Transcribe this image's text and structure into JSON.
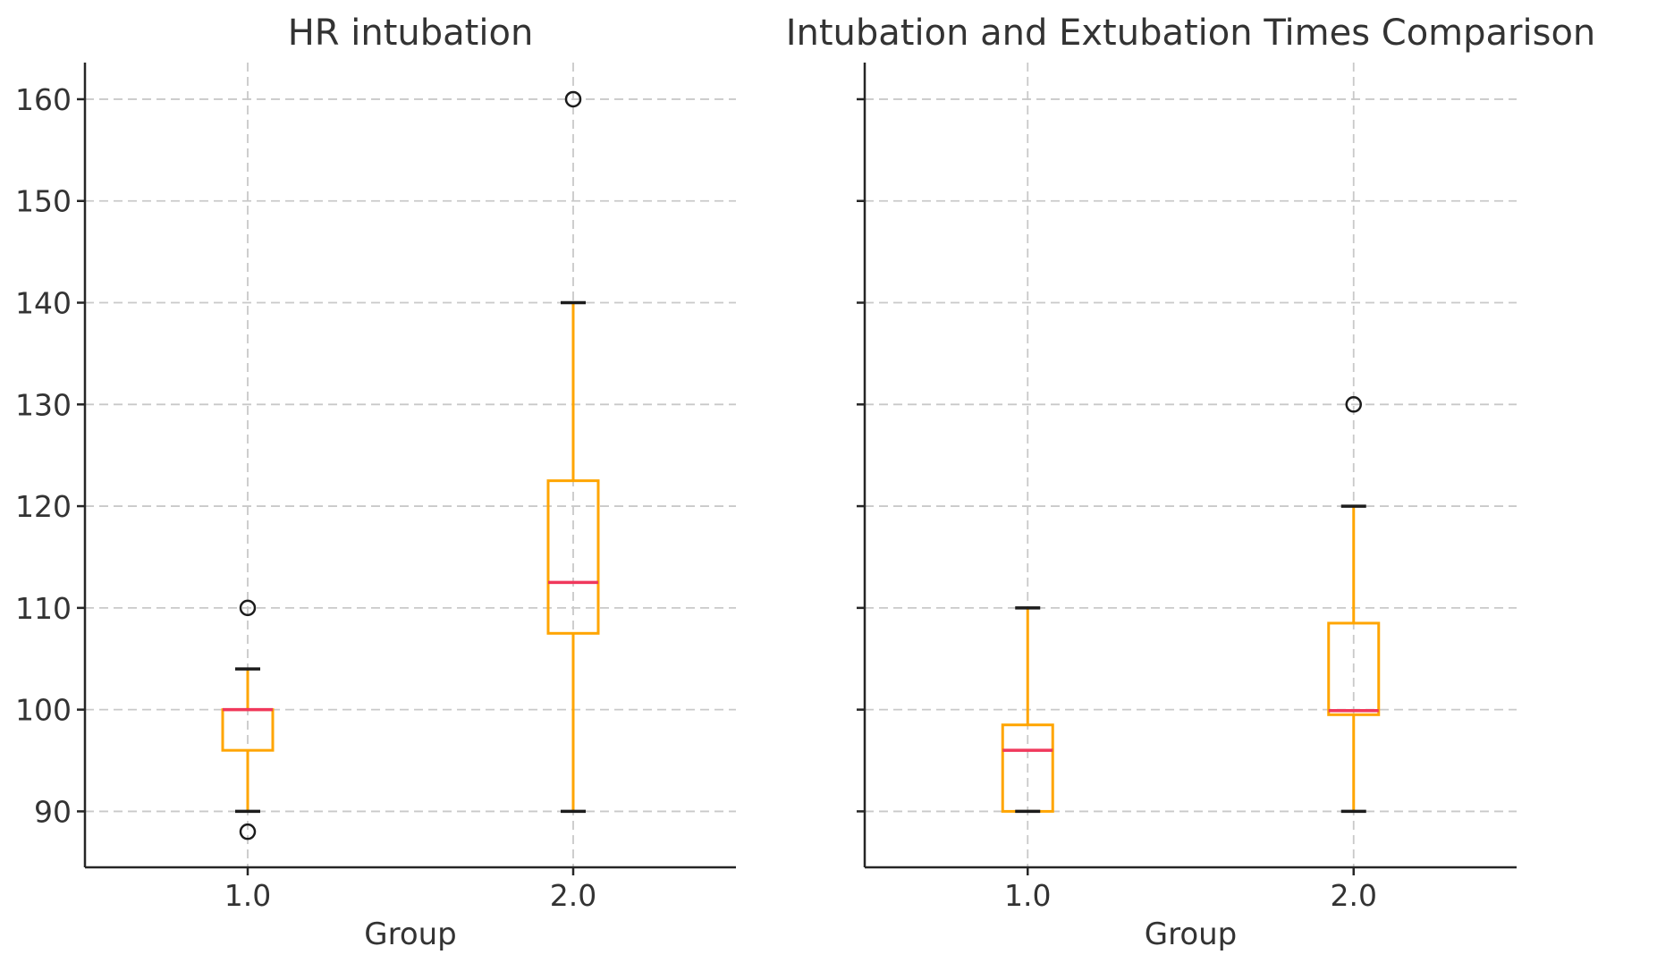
{
  "figure": {
    "background": "#ffffff",
    "shared_y_axis": true
  },
  "style": {
    "box_color": "#FFA500",
    "median_color": "#F0385C",
    "whisker_cap_color": "#1c1c1c",
    "grid_color": "#c9c9c9",
    "spine_color": "#262626",
    "text_color": "#333333"
  },
  "chart_data": [
    {
      "type": "box",
      "title": "HR intubation",
      "xlabel": "Group",
      "ylabel": "",
      "categories": [
        "1.0",
        "2.0"
      ],
      "ylim": [
        84.5,
        163.6
      ],
      "yticks": [
        90,
        100,
        110,
        120,
        130,
        140,
        150,
        160
      ],
      "y_tick_labels_visible": true,
      "grid": true,
      "legend": "none",
      "boxes": [
        {
          "group": "1.0",
          "q1": 96,
          "median": 100,
          "q3": 100,
          "whisker_low": 90,
          "whisker_high": 104,
          "outliers": [
            110,
            88
          ]
        },
        {
          "group": "2.0",
          "q1": 107.5,
          "median": 112.5,
          "q3": 122.5,
          "whisker_low": 90,
          "whisker_high": 140,
          "outliers": [
            160
          ]
        }
      ]
    },
    {
      "type": "box",
      "title": "Intubation and Extubation Times Comparison",
      "xlabel": "Group",
      "ylabel": "",
      "categories": [
        "1.0",
        "2.0"
      ],
      "ylim": [
        84.5,
        163.6
      ],
      "yticks": [
        90,
        100,
        110,
        120,
        130,
        140,
        150,
        160
      ],
      "y_tick_labels_visible": false,
      "grid": true,
      "legend": "none",
      "boxes": [
        {
          "group": "1.0",
          "q1": 90,
          "median": 96,
          "q3": 98.5,
          "whisker_low": 90,
          "whisker_high": 110,
          "outliers": []
        },
        {
          "group": "2.0",
          "q1": 99.5,
          "median": 99.9,
          "q3": 108.5,
          "whisker_low": 90,
          "whisker_high": 120,
          "outliers": [
            130
          ]
        }
      ]
    }
  ]
}
